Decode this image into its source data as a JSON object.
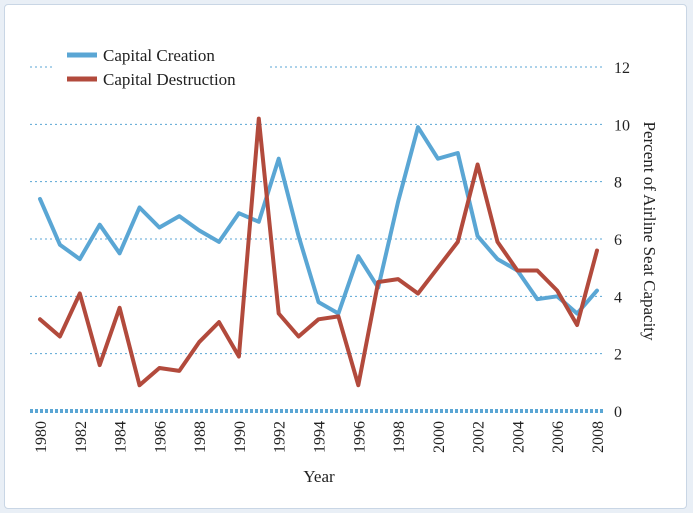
{
  "chart_data": {
    "type": "line",
    "title": "",
    "xlabel": "Year",
    "ylabel": "Percent of Airline Seat Capacity",
    "ylim": [
      0,
      12
    ],
    "yticks": [
      0,
      2,
      4,
      6,
      8,
      10,
      12
    ],
    "xlim": [
      1980,
      2008
    ],
    "xticks": [
      1980,
      1982,
      1984,
      1986,
      1988,
      1990,
      1992,
      1994,
      1996,
      1998,
      2000,
      2002,
      2004,
      2006,
      2008
    ],
    "grid": "horizontal dotted",
    "legend_position": "top-left",
    "x": [
      1980,
      1981,
      1982,
      1983,
      1984,
      1985,
      1986,
      1987,
      1988,
      1989,
      1990,
      1991,
      1992,
      1993,
      1994,
      1995,
      1996,
      1997,
      1998,
      1999,
      2000,
      2001,
      2002,
      2003,
      2004,
      2005,
      2006,
      2007,
      2008
    ],
    "series": [
      {
        "name": "Capital Creation",
        "color": "#5aa6d4",
        "values": [
          7.4,
          5.8,
          5.3,
          6.5,
          5.5,
          7.1,
          6.4,
          6.8,
          6.3,
          5.9,
          6.9,
          6.6,
          8.8,
          6.1,
          3.8,
          3.4,
          5.4,
          4.3,
          7.3,
          9.9,
          8.8,
          9.0,
          6.1,
          5.3,
          4.9,
          3.9,
          4.0,
          3.4,
          4.2
        ]
      },
      {
        "name": "Capital Destruction",
        "color": "#b24a3c",
        "values": [
          3.2,
          2.6,
          4.1,
          1.6,
          3.6,
          0.9,
          1.5,
          1.4,
          2.4,
          3.1,
          1.9,
          10.2,
          3.4,
          2.6,
          3.2,
          3.3,
          0.9,
          4.5,
          4.6,
          4.1,
          5.0,
          5.9,
          8.6,
          5.9,
          4.9,
          4.9,
          4.2,
          3.0,
          5.6
        ]
      }
    ]
  }
}
